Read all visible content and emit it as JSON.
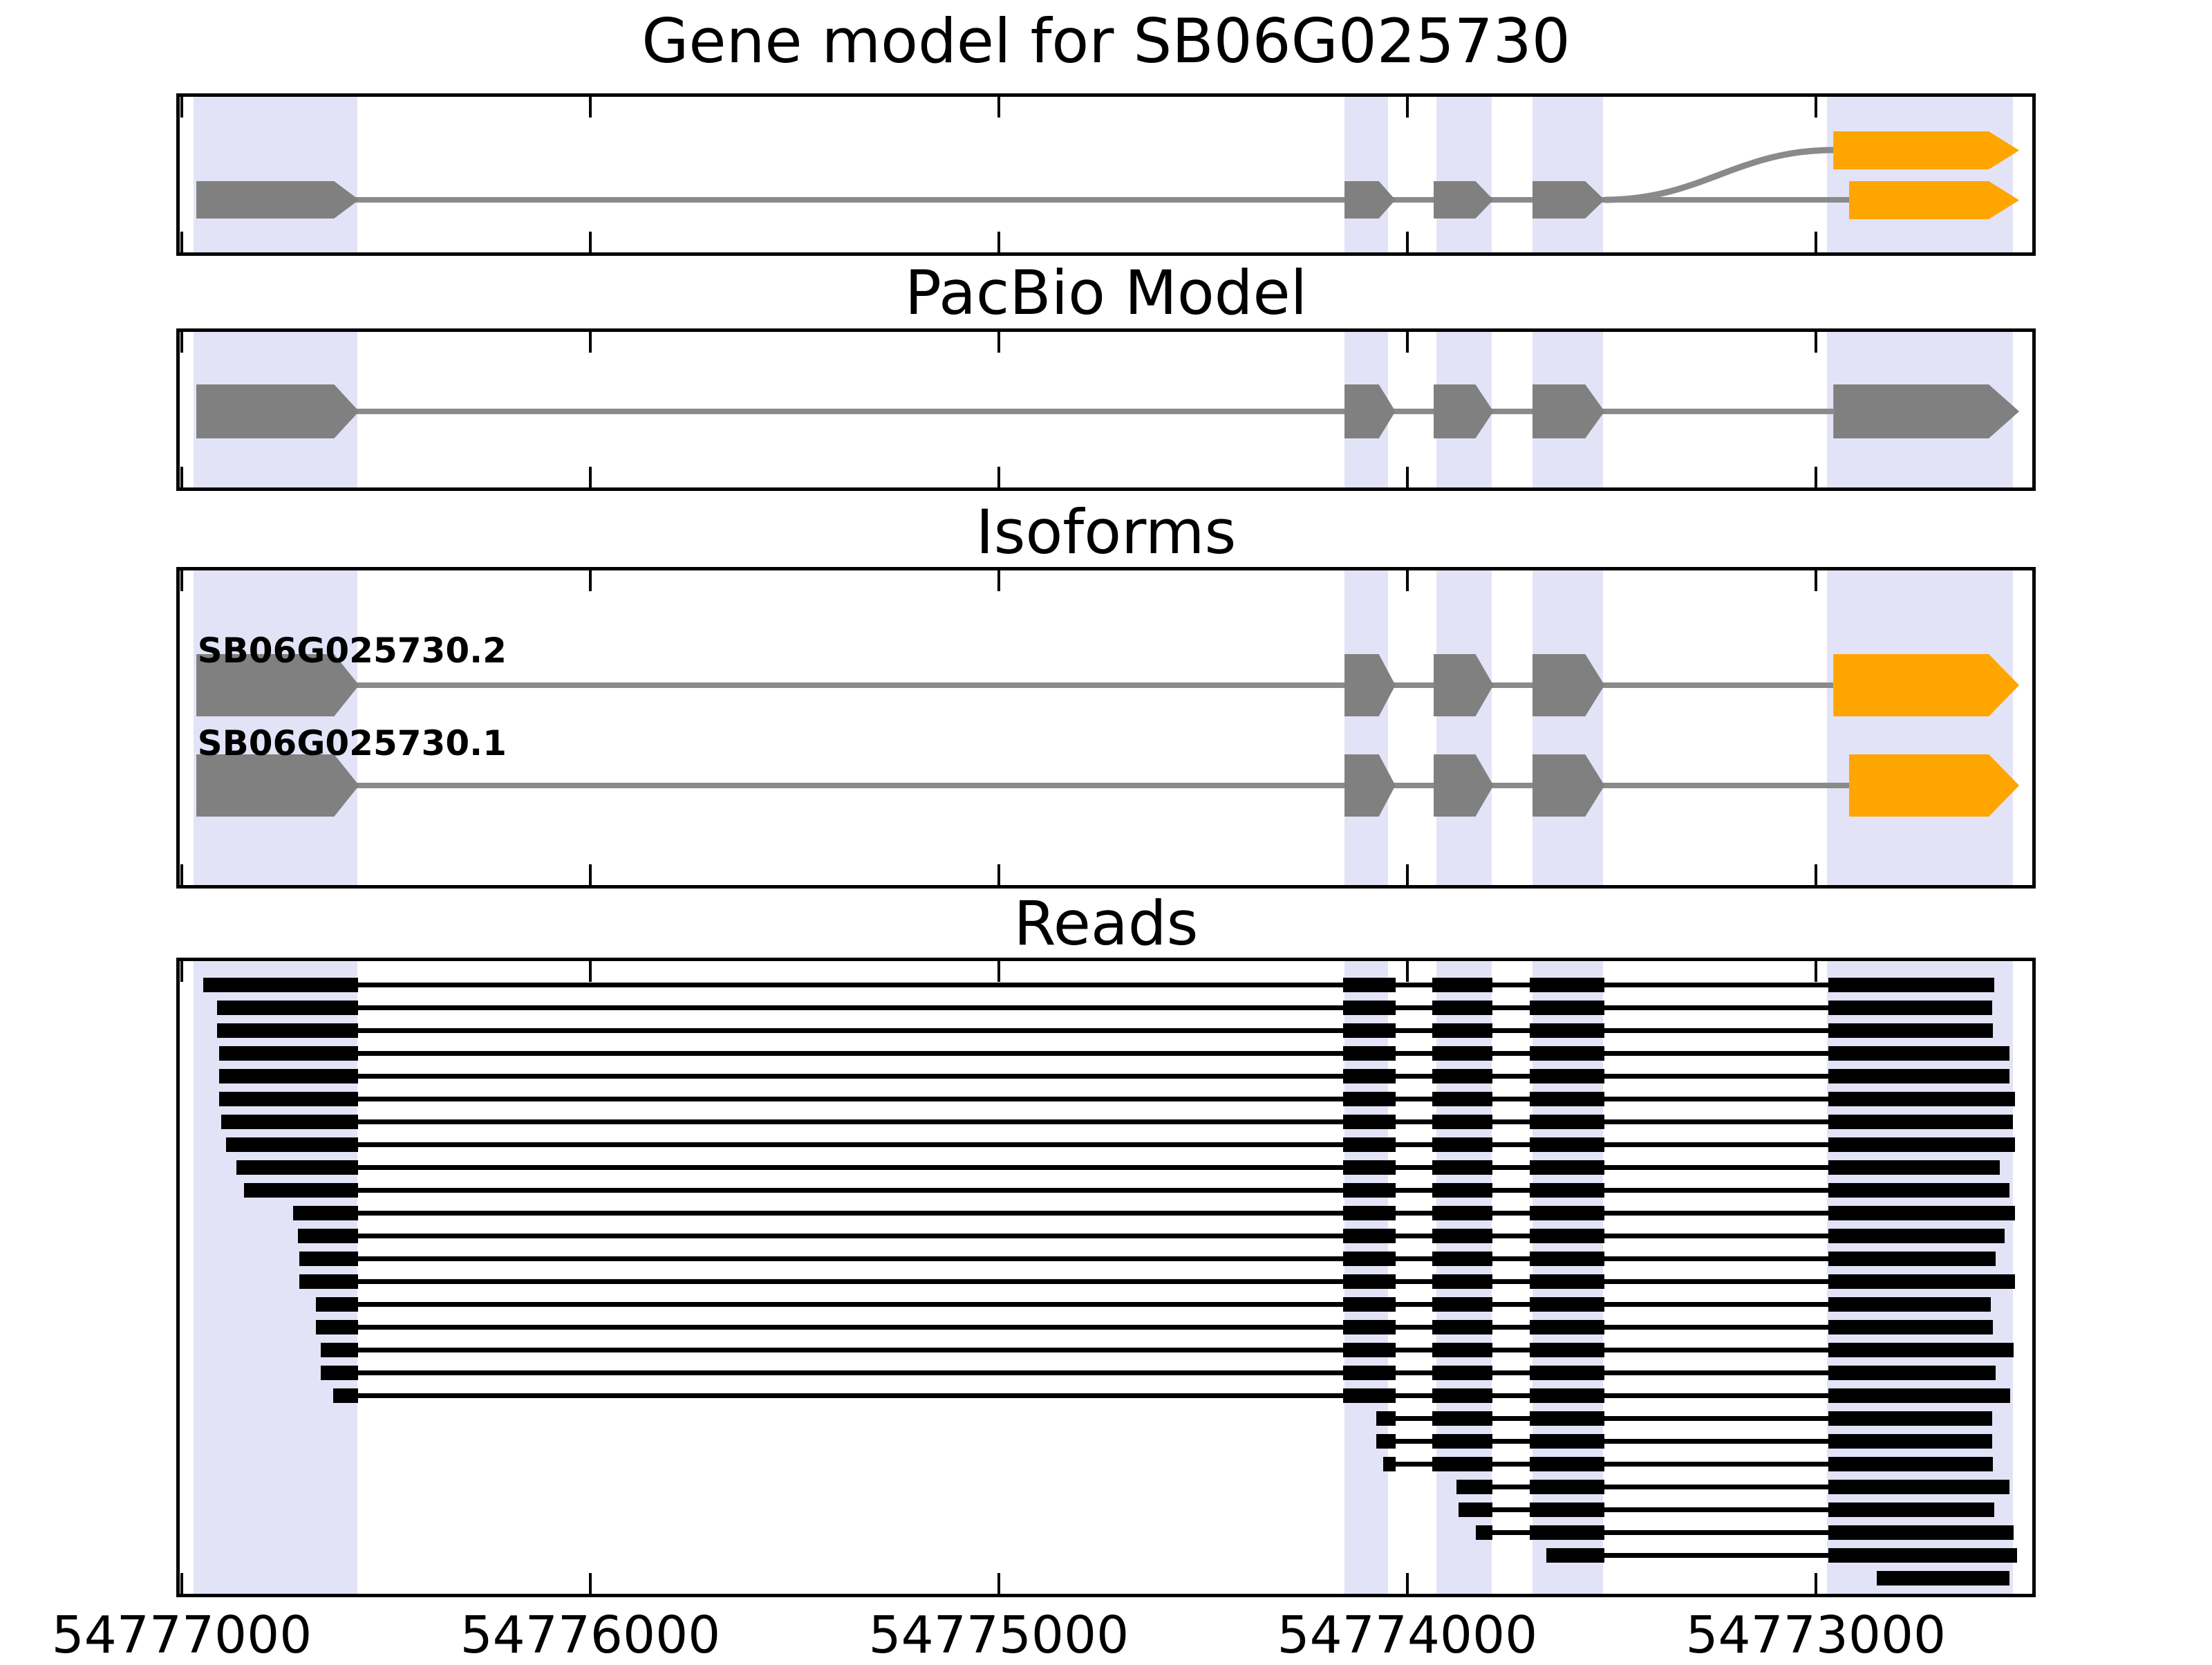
{
  "figure": {
    "title": "Gene model for SB06G025730",
    "panel_titles": {
      "pacbio": "PacBio Model",
      "isoforms": "Isoforms",
      "reads": "Reads"
    }
  },
  "colors": {
    "exon_gray": "#808080",
    "intron_gray": "#8a8a8a",
    "utr_orange": "#ffa500",
    "highlight_lavender": "#e3e3f7",
    "read_black": "#000000",
    "background": "#ffffff"
  },
  "chart_data": {
    "type": "gene-model-tracks",
    "gene_id": "SB06G025730",
    "axis": {
      "xlim": [
        54777005,
        54772470
      ],
      "orientation": "reversed",
      "ticks": [
        54777000,
        54776000,
        54775000,
        54774000,
        54773000
      ],
      "tick_labels": [
        "54777000",
        "54776000",
        "54775000",
        "54774000",
        "54773000"
      ]
    },
    "highlight_regions": [
      [
        54776972,
        54776570
      ],
      [
        54774154,
        54774047
      ],
      [
        54773929,
        54773794
      ],
      [
        54773694,
        54773520
      ],
      [
        54772972,
        54772518
      ]
    ],
    "shared_exons": [
      [
        54776965,
        54776566
      ],
      [
        54774154,
        54774029
      ],
      [
        54773936,
        54773789
      ],
      [
        54773694,
        54773517
      ]
    ],
    "gene_model": {
      "upper_end_exon": {
        "isoform": "SB06G025730.2",
        "span": [
          54772957,
          54772502
        ],
        "color": "orange"
      },
      "lower_end_exon": {
        "isoform": "SB06G025730.1",
        "span": [
          54772919,
          54772502
        ],
        "color": "orange"
      }
    },
    "pacbio_model": {
      "exons": [
        [
          54776965,
          54776566
        ],
        [
          54774154,
          54774029
        ],
        [
          54773936,
          54773789
        ],
        [
          54773694,
          54773517
        ],
        [
          54772957,
          54772502
        ]
      ],
      "color": "gray"
    },
    "isoforms": [
      {
        "name": "SB06G025730.2",
        "end_exon": [
          54772957,
          54772502
        ]
      },
      {
        "name": "SB06G025730.1",
        "end_exon": [
          54772919,
          54772502
        ]
      }
    ],
    "reads": {
      "exon_template": [
        [
          54776965,
          54776568
        ],
        [
          54774157,
          54774029
        ],
        [
          54773939,
          54773791
        ],
        [
          54773700,
          54773517
        ],
        [
          54772970,
          54772400
        ]
      ],
      "alignments": [
        [
          54776948,
          54772563
        ],
        [
          54776914,
          54772568
        ],
        [
          54776914,
          54772567
        ],
        [
          54776909,
          54772526
        ],
        [
          54776909,
          54772526
        ],
        [
          54776909,
          54772513
        ],
        [
          54776904,
          54772518
        ],
        [
          54776892,
          54772513
        ],
        [
          54776867,
          54772550
        ],
        [
          54776847,
          54772526
        ],
        [
          54776728,
          54772513
        ],
        [
          54776715,
          54772538
        ],
        [
          54776712,
          54772560
        ],
        [
          54776713,
          54772513
        ],
        [
          54776671,
          54772572
        ],
        [
          54776671,
          54772567
        ],
        [
          54776659,
          54772516
        ],
        [
          54776659,
          54772560
        ],
        [
          54776629,
          54772524
        ],
        [
          54774076,
          54772568
        ],
        [
          54774076,
          54772568
        ],
        [
          54774059,
          54772567
        ],
        [
          54773879,
          54772526
        ],
        [
          54773874,
          54772563
        ],
        [
          54773833,
          54772516
        ],
        [
          54773659,
          54772508
        ],
        [
          54772850,
          54772526
        ]
      ]
    }
  }
}
